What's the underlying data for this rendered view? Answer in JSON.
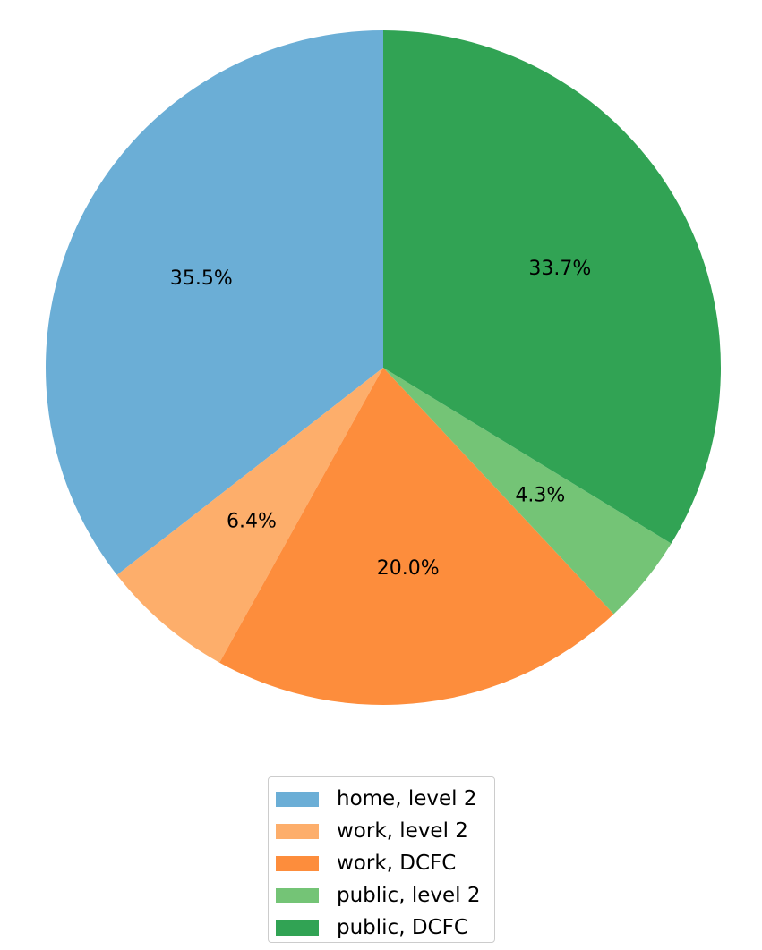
{
  "chart_data": {
    "type": "pie",
    "start_angle_deg": 90,
    "direction": "counterclockwise",
    "slices": [
      {
        "label": "home, level 2",
        "value": 35.5,
        "pct_label": "35.5%",
        "color": "#6baed6"
      },
      {
        "label": "work, level 2",
        "value": 6.4,
        "pct_label": "6.4%",
        "color": "#fdae6b"
      },
      {
        "label": "work, DCFC",
        "value": 20.0,
        "pct_label": "20.0%",
        "color": "#fd8d3c"
      },
      {
        "label": "public, level 2",
        "value": 4.3,
        "pct_label": "4.3%",
        "color": "#74c476"
      },
      {
        "label": "public, DCFC",
        "value": 33.7,
        "pct_label": "33.7%",
        "color": "#31a354"
      }
    ],
    "legend_position": "bottom-center"
  }
}
